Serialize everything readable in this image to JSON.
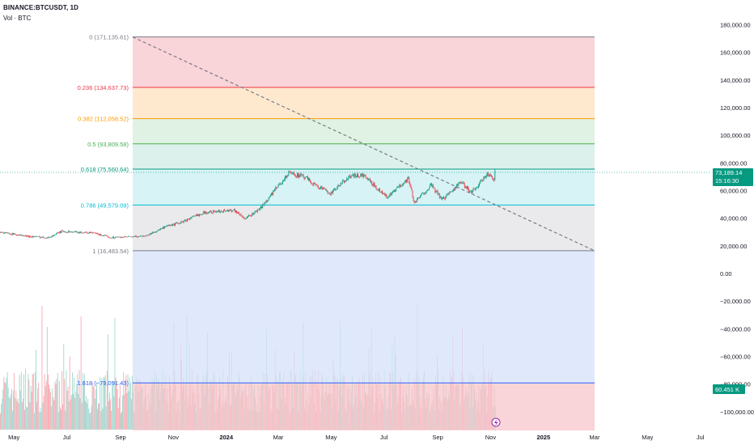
{
  "header": {
    "symbol_line": "BINANCE:BTCUSDT, 1D",
    "volume_line": "Vol · BTC"
  },
  "colors": {
    "up_candle": "#089981",
    "down_candle": "#f23645",
    "price_tag_bg": "#089981",
    "volume_tag_bg": "#089981",
    "trendline": "#787b86"
  },
  "chart_data": {
    "type": "candlestick",
    "symbol": "BINANCE:BTCUSDT",
    "interval": "1D",
    "ylim": [
      -110000,
      185000
    ],
    "y_tick_labels": [
      "180,000.00",
      "160,000.00",
      "140,000.00",
      "120,000.00",
      "100,000.00",
      "80,000.00",
      "60,000.00",
      "40,000.00",
      "20,000.00",
      "0.00",
      "−20,000.00",
      "−40,000.00",
      "−60,000.00",
      "−80,000.00",
      "−100,000.00"
    ],
    "y_tick_values": [
      180000,
      160000,
      140000,
      120000,
      100000,
      80000,
      60000,
      40000,
      20000,
      0,
      -20000,
      -40000,
      -60000,
      -80000,
      -100000
    ],
    "x_tick_labels": [
      "May",
      "Jul",
      "Sep",
      "Nov",
      "2024",
      "Mar",
      "May",
      "Jul",
      "Sep",
      "Nov",
      "2025",
      "Mar",
      "May",
      "Jul"
    ],
    "x_tick_dates": [
      "2023-05-01",
      "2023-07-01",
      "2023-09-01",
      "2023-11-01",
      "2024-01-01",
      "2024-03-01",
      "2024-05-01",
      "2024-07-01",
      "2024-09-01",
      "2024-11-01",
      "2025-01-01",
      "2025-03-01",
      "2025-05-01",
      "2025-07-01"
    ],
    "last_price": "73,189.14",
    "countdown": "15:16:30",
    "last_volume": "60.451 K",
    "price_path": [
      {
        "date": "2023-04-15",
        "close": 30000
      },
      {
        "date": "2023-05-15",
        "close": 27000
      },
      {
        "date": "2023-06-10",
        "close": 26000
      },
      {
        "date": "2023-06-25",
        "close": 30500
      },
      {
        "date": "2023-08-01",
        "close": 29300
      },
      {
        "date": "2023-08-20",
        "close": 26100
      },
      {
        "date": "2023-09-15",
        "close": 26500
      },
      {
        "date": "2023-10-01",
        "close": 27500
      },
      {
        "date": "2023-10-24",
        "close": 34000
      },
      {
        "date": "2023-11-10",
        "close": 37000
      },
      {
        "date": "2023-12-05",
        "close": 44000
      },
      {
        "date": "2024-01-10",
        "close": 46000
      },
      {
        "date": "2024-01-23",
        "close": 39500
      },
      {
        "date": "2024-02-10",
        "close": 47500
      },
      {
        "date": "2024-02-28",
        "close": 62000
      },
      {
        "date": "2024-03-14",
        "close": 73000
      },
      {
        "date": "2024-04-01",
        "close": 69500
      },
      {
        "date": "2024-04-15",
        "close": 63000
      },
      {
        "date": "2024-05-01",
        "close": 58000
      },
      {
        "date": "2024-05-21",
        "close": 70000
      },
      {
        "date": "2024-06-07",
        "close": 71000
      },
      {
        "date": "2024-07-05",
        "close": 55000
      },
      {
        "date": "2024-07-29",
        "close": 69000
      },
      {
        "date": "2024-08-05",
        "close": 51000
      },
      {
        "date": "2024-08-24",
        "close": 64000
      },
      {
        "date": "2024-09-06",
        "close": 53500
      },
      {
        "date": "2024-09-27",
        "close": 66000
      },
      {
        "date": "2024-10-10",
        "close": 59000
      },
      {
        "date": "2024-10-29",
        "close": 72000
      },
      {
        "date": "2024-11-05",
        "close": 68000
      },
      {
        "date": "2024-11-06",
        "close": 73189
      }
    ],
    "fib_retracement": {
      "start_date": "2023-09-15",
      "end_date": "2025-03-01",
      "levels": [
        {
          "ratio": "0",
          "price": 171135.61,
          "label": "0 (171,135.61)",
          "line": "#787b86",
          "fill": "#f7c6cb"
        },
        {
          "ratio": "0.236",
          "price": 134637.73,
          "label": "0.236 (134,637.73)",
          "line": "#f23645",
          "fill": "#fde2bf"
        },
        {
          "ratio": "0.382",
          "price": 112058.52,
          "label": "0.382 (112,058.52)",
          "line": "#ff9800",
          "fill": "#d4edd9"
        },
        {
          "ratio": "0.5",
          "price": 93809.58,
          "label": "0.5 (93,809.58)",
          "line": "#4caf50",
          "fill": "#d0ece4"
        },
        {
          "ratio": "0.618",
          "price": 75560.64,
          "label": "0.618 (75,560.64)",
          "line": "#089981",
          "fill": "#c9eff2"
        },
        {
          "ratio": "0.786",
          "price": 49579.09,
          "label": "0.786 (49,579.09)",
          "line": "#00bcd4",
          "fill": "#e3e3e5"
        },
        {
          "ratio": "1",
          "price": 16483.54,
          "label": "1 (16,483.54)",
          "line": "#787b86",
          "fill": "#d5e1fb"
        },
        {
          "ratio": "1.618",
          "price": -79091.43,
          "label": "1.618 (−79,091.43)",
          "line": "#2962ff",
          "fill": "#f7c6cb"
        }
      ]
    },
    "trendline": {
      "start_date": "2023-09-15",
      "start_price": 171135.61,
      "end_date": "2025-03-01",
      "end_price": 16483.54
    }
  }
}
